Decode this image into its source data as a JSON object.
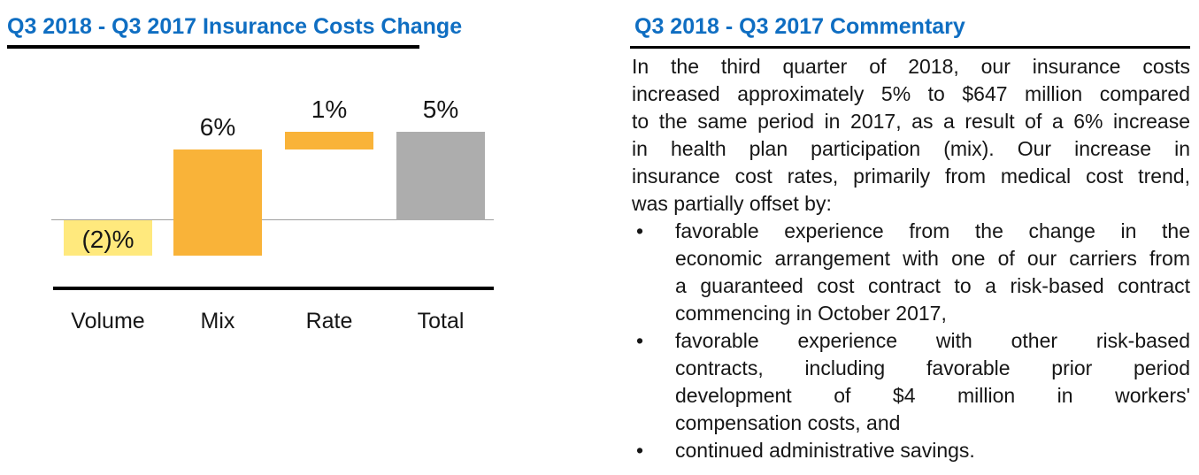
{
  "colors": {
    "title_blue": "#0F6EC2",
    "bar_positive": "#F9B339",
    "bar_negative": "#FFE97D",
    "bar_total": "#ADADAD",
    "zero_line_gray": "#9E9E9E",
    "axis_black": "#000000",
    "body_text": "#161616"
  },
  "left_panel": {
    "title": "Q3 2018 - Q3 2017 Insurance Costs Change"
  },
  "chart_data": {
    "type": "bar",
    "subtype": "waterfall",
    "title": "Q3 2018 - Q3 2017 Insurance Costs Change",
    "categories": [
      "Volume",
      "Mix",
      "Rate",
      "Total"
    ],
    "values": [
      -2,
      6,
      1,
      5
    ],
    "value_labels": [
      "(2)%",
      "6%",
      "1%",
      "5%"
    ],
    "total_category": "Total",
    "unit": "percent",
    "baseline": 0,
    "ylim": [
      -2,
      5
    ],
    "grid": false,
    "legend": false
  },
  "right_panel": {
    "title": "Q3 2018 - Q3 2017 Commentary",
    "bullet_char": "•",
    "paragraph_lines": [
      "In the third quarter of 2018, our insurance costs",
      "increased approximately 5% to $647 million compared",
      "to the same period in 2017, as a result of a 6% increase",
      "in health plan participation (mix). Our increase in",
      "insurance cost rates, primarily from medical cost trend,",
      "was partially offset by:"
    ],
    "bullets": [
      {
        "lines": [
          "favorable experience from the change in the",
          "economic arrangement with one of our carriers from",
          "a guaranteed cost contract to a risk-based contract",
          "commencing in October 2017,"
        ]
      },
      {
        "lines": [
          "favorable experience with other risk-based",
          "contracts, including favorable prior period",
          "development of $4 million in workers'",
          "compensation costs, and"
        ]
      },
      {
        "lines": [
          "continued administrative savings."
        ]
      }
    ]
  }
}
